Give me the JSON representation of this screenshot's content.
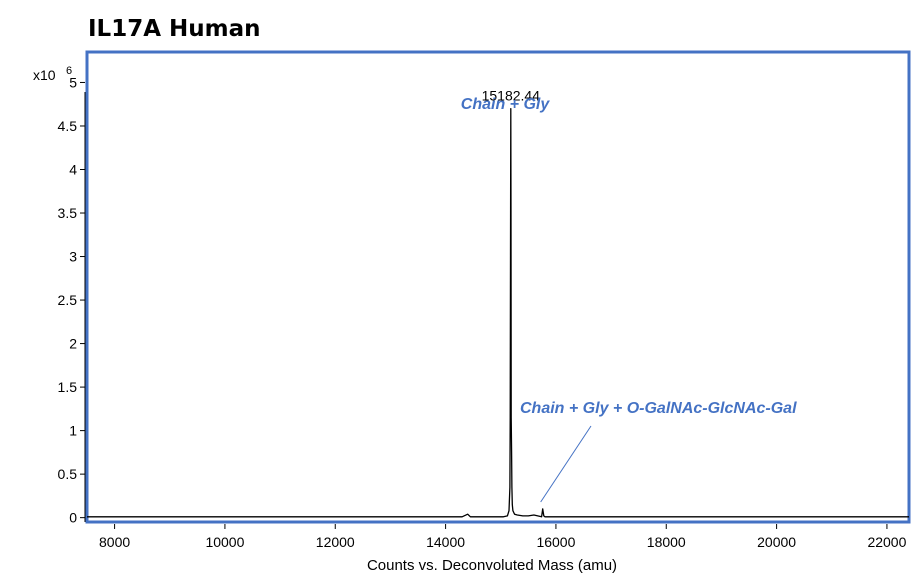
{
  "chart_data": {
    "type": "line",
    "title": "IL17A Human",
    "y_multiplier": "x10",
    "y_exponent": "6",
    "xlabel": "Counts vs. Deconvoluted Mass (amu)",
    "ylabel": "",
    "xlim": [
      7500,
      22400
    ],
    "ylim": [
      -0.05,
      5.35
    ],
    "x_ticks": [
      8000,
      10000,
      12000,
      14000,
      16000,
      18000,
      20000,
      22000
    ],
    "y_ticks": [
      "0",
      "0.5",
      "1",
      "1.5",
      "2",
      "2.5",
      "3",
      "3.5",
      "4",
      "4.5",
      "5"
    ],
    "grid": false,
    "series": [
      {
        "x": [
          7500,
          14300,
          14400,
          14450,
          15050,
          15120,
          15150,
          15165,
          15172,
          15178,
          15182.44,
          15186,
          15190,
          15196,
          15202,
          15210,
          15220,
          15235,
          15250,
          15300,
          15400,
          15500,
          15600,
          15740,
          15760,
          15780,
          15800,
          16100,
          22400
        ],
        "y": [
          0.01,
          0.01,
          0.04,
          0.01,
          0.01,
          0.02,
          0.08,
          0.35,
          1.15,
          3.6,
          4.7,
          3.5,
          1.15,
          0.75,
          0.35,
          0.15,
          0.08,
          0.06,
          0.04,
          0.03,
          0.02,
          0.02,
          0.03,
          0.01,
          0.1,
          0.02,
          0.01,
          0.01,
          0.01
        ]
      }
    ],
    "peak_label": {
      "x": 15182.44,
      "text": "15182.44"
    },
    "annotations": [
      {
        "text": "Chain + Gly",
        "color": "#4472C4"
      },
      {
        "text": "Chain + Gly + O-GalNAc-GlcNAc-Gal",
        "color": "#4472C4",
        "points_to_x": 15760
      }
    ],
    "frame_color": "#4472C4"
  }
}
